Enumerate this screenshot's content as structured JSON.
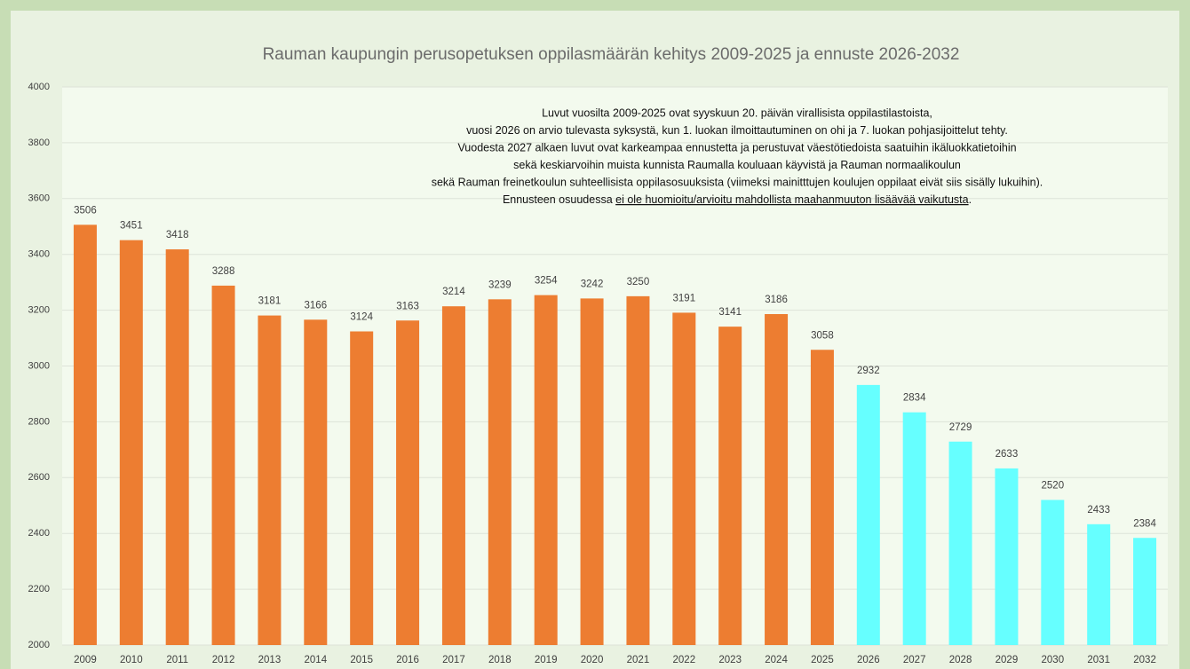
{
  "chart_data": {
    "type": "bar",
    "title": "Rauman kaupungin perusopetuksen oppilasmäärän kehitys 2009-2025 ja ennuste 2026-2032",
    "note": [
      "Luvut vuosilta 2009-2025 ovat syyskuun 20. päivän virallisista oppilastilastoista,",
      "vuosi 2026 on arvio tulevasta syksystä, kun 1. luokan ilmoittautuminen on ohi ja 7. luokan pohjasijoittelut tehty.",
      "Vuodesta 2027 alkaen luvut ovat karkeampaa ennustetta ja perustuvat väestötiedoista saatuihin ikäluokkatietoihin",
      "sekä keskiarvoihin muista kunnista Raumalla kouluaan käyvistä ja Rauman normaalikoulun",
      "sekä Rauman freinetkoulun suhteellisista oppilasosuuksista (viimeksi mainitttujen koulujen oppilaat eivät siis sisälly lukuihin).",
      [
        "Ennusteen osuudessa ",
        "ei ole huomioitu/arvioitu mahdollista maahanmuuton lisäävää vaikutusta",
        "."
      ]
    ],
    "categories": [
      "2009",
      "2010",
      "2011",
      "2012",
      "2013",
      "2014",
      "2015",
      "2016",
      "2017",
      "2018",
      "2019",
      "2020",
      "2021",
      "2022",
      "2023",
      "2024",
      "2025",
      "2026",
      "2027",
      "2028",
      "2029",
      "2030",
      "2031",
      "2032"
    ],
    "values": [
      3506,
      3451,
      3418,
      3288,
      3181,
      3166,
      3124,
      3163,
      3214,
      3239,
      3254,
      3242,
      3250,
      3191,
      3141,
      3186,
      3058,
      2932,
      2834,
      2729,
      2633,
      2520,
      2433,
      2384
    ],
    "colors": [
      "#ed7d31",
      "#ed7d31",
      "#ed7d31",
      "#ed7d31",
      "#ed7d31",
      "#ed7d31",
      "#ed7d31",
      "#ed7d31",
      "#ed7d31",
      "#ed7d31",
      "#ed7d31",
      "#ed7d31",
      "#ed7d31",
      "#ed7d31",
      "#ed7d31",
      "#ed7d31",
      "#ed7d31",
      "#66ffff",
      "#66ffff",
      "#66ffff",
      "#66ffff",
      "#66ffff",
      "#66ffff",
      "#66ffff"
    ],
    "ylim": [
      2000,
      4000
    ],
    "yticks": [
      2000,
      2200,
      2400,
      2600,
      2800,
      3000,
      3200,
      3400,
      3600,
      3800,
      4000
    ],
    "grid": true
  }
}
